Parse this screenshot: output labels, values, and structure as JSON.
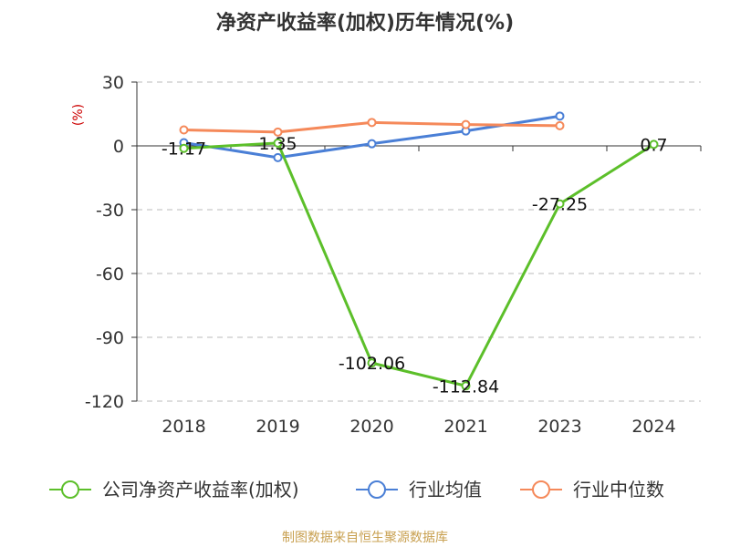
{
  "chart_data": {
    "type": "line",
    "title": "净资产收益率(加权)历年情况(%)",
    "unit_label": "(%)",
    "categories": [
      "2018",
      "2019",
      "2020",
      "2021",
      "2023",
      "2024"
    ],
    "ylim": [
      -120,
      30
    ],
    "yticks": [
      "30",
      "0",
      "-30",
      "-60",
      "-90",
      "-120"
    ],
    "grid": true,
    "legend_position": "bottom",
    "series": [
      {
        "name": "公司净资产收益率(加权)",
        "color": "#5cbf2a",
        "values": [
          -1.17,
          1.35,
          -102.06,
          -112.84,
          -27.25,
          0.7
        ],
        "labels": [
          "-1.17",
          "1.35",
          "-102.06",
          "-112.84",
          "-27.25",
          "0.7"
        ]
      },
      {
        "name": "行业均值",
        "color": "#4a7fd6",
        "values": [
          1.5,
          -5.5,
          1.0,
          7.0,
          14.0,
          null
        ]
      },
      {
        "name": "行业中位数",
        "color": "#f5895a",
        "values": [
          7.5,
          6.5,
          11.0,
          10.0,
          9.5,
          null
        ]
      }
    ]
  },
  "source": "制图数据来自恒生聚源数据库"
}
